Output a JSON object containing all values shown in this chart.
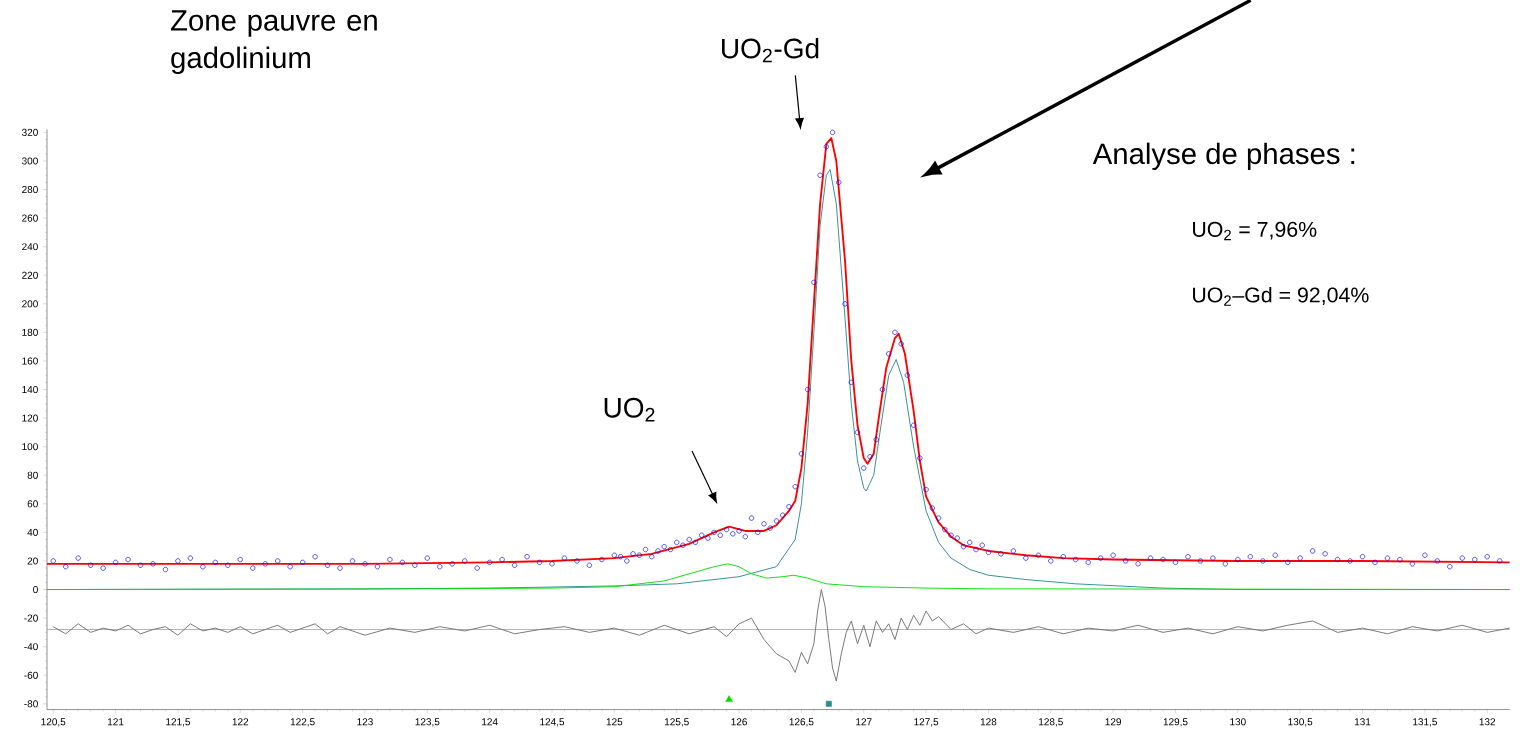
{
  "chart_data": {
    "type": "line",
    "xlim": [
      120.45,
      132.18
    ],
    "ylim": [
      -84,
      322
    ],
    "xticks": [
      {
        "value": 120.5,
        "label": "120,5"
      },
      121,
      {
        "value": 121.5,
        "label": "121,5"
      },
      122,
      {
        "value": 122.5,
        "label": "122,5"
      },
      123,
      {
        "value": 123.5,
        "label": "123,5"
      },
      124,
      {
        "value": 124.5,
        "label": "124,5"
      },
      125,
      {
        "value": 125.5,
        "label": "125,5"
      },
      126,
      {
        "value": 126.5,
        "label": "126,5"
      },
      127,
      {
        "value": 127.5,
        "label": "127,5"
      },
      128,
      {
        "value": 128.5,
        "label": "128,5"
      },
      129,
      {
        "value": 129.5,
        "label": "129,5"
      },
      130,
      {
        "value": 130.5,
        "label": "130,5"
      },
      131,
      {
        "value": 131.5,
        "label": "131,5"
      },
      132
    ],
    "yticks": [
      -80,
      -60,
      -40,
      -20,
      0,
      20,
      40,
      60,
      80,
      100,
      120,
      140,
      160,
      180,
      200,
      220,
      240,
      260,
      280,
      300,
      320
    ],
    "ref_lines": [
      {
        "axis": "y",
        "value": -28,
        "color": "#a0a0a0"
      }
    ],
    "annotations": [
      "Zone pauvre en gadolinium",
      {
        "text": "UO$_{2}$-Gd",
        "x": 126.74,
        "y": 316
      },
      "UO$_{2}$",
      "Analyse de phases :",
      "UO$_{2}$ = 7,96%",
      "UO$_{2}$–Gd = 92,04%"
    ],
    "series": [
      {
        "type": "scatter",
        "marker": "circle",
        "color": "#0000ff",
        "x": [
          120.5,
          120.6,
          120.7,
          120.8,
          120.9,
          121.0,
          121.1,
          121.2,
          121.3,
          121.4,
          121.5,
          121.6,
          121.7,
          121.8,
          121.9,
          122.0,
          122.1,
          122.2,
          122.3,
          122.4,
          122.5,
          122.6,
          122.7,
          122.8,
          122.9,
          123.0,
          123.1,
          123.2,
          123.3,
          123.4,
          123.5,
          123.6,
          123.7,
          123.8,
          123.9,
          124.0,
          124.1,
          124.2,
          124.3,
          124.4,
          124.5,
          124.6,
          124.7,
          124.8,
          124.9,
          125.0,
          125.05,
          125.1,
          125.15,
          125.2,
          125.25,
          125.3,
          125.35,
          125.4,
          125.45,
          125.5,
          125.55,
          125.6,
          125.65,
          125.7,
          125.75,
          125.8,
          125.85,
          125.9,
          125.95,
          126.0,
          126.05,
          126.1,
          126.15,
          126.2,
          126.25,
          126.3,
          126.35,
          126.4,
          126.45,
          126.5,
          126.55,
          126.6,
          126.65,
          126.7,
          126.75,
          126.8,
          126.85,
          126.9,
          126.95,
          127.0,
          127.05,
          127.1,
          127.15,
          127.2,
          127.25,
          127.3,
          127.35,
          127.4,
          127.45,
          127.5,
          127.55,
          127.6,
          127.65,
          127.7,
          127.75,
          127.8,
          127.85,
          127.9,
          127.95,
          128.0,
          128.1,
          128.2,
          128.3,
          128.4,
          128.5,
          128.6,
          128.7,
          128.8,
          128.9,
          129.0,
          129.1,
          129.2,
          129.3,
          129.4,
          129.5,
          129.6,
          129.7,
          129.8,
          129.9,
          130.0,
          130.1,
          130.2,
          130.3,
          130.4,
          130.5,
          130.6,
          130.7,
          130.8,
          130.9,
          131.0,
          131.1,
          131.2,
          131.3,
          131.4,
          131.5,
          131.6,
          131.7,
          131.8,
          131.9,
          132.0,
          132.1
        ],
        "values": [
          20,
          16,
          22,
          17,
          15,
          19,
          21,
          17,
          18,
          14,
          20,
          22,
          16,
          19,
          17,
          21,
          15,
          18,
          20,
          16,
          19,
          23,
          17,
          15,
          20,
          18,
          16,
          21,
          19,
          17,
          22,
          16,
          18,
          20,
          15,
          19,
          21,
          17,
          23,
          19,
          18,
          22,
          20,
          17,
          21,
          24,
          23,
          20,
          25,
          24,
          28,
          23,
          27,
          30,
          28,
          33,
          31,
          35,
          33,
          38,
          36,
          40,
          38,
          42,
          39,
          41,
          37,
          50,
          40,
          46,
          43,
          48,
          52,
          58,
          72,
          95,
          140,
          215,
          290,
          310,
          320,
          285,
          200,
          145,
          110,
          85,
          93,
          105,
          140,
          165,
          180,
          172,
          150,
          115,
          92,
          70,
          57,
          50,
          42,
          38,
          36,
          30,
          33,
          28,
          31,
          26,
          25,
          27,
          22,
          24,
          20,
          23,
          21,
          19,
          22,
          24,
          20,
          18,
          22,
          21,
          19,
          23,
          20,
          22,
          18,
          21,
          23,
          20,
          24,
          19,
          22,
          27,
          25,
          21,
          20,
          23,
          19,
          22,
          21,
          18,
          24,
          20,
          16,
          22,
          21,
          23,
          20
        ]
      },
      {
        "type": "line",
        "marker": "none",
        "color": "#ff0000",
        "x": [
          120.45,
          121,
          122,
          123,
          124,
          124.5,
          125,
          125.3,
          125.6,
          125.8,
          125.92,
          126.05,
          126.2,
          126.3,
          126.4,
          126.45,
          126.5,
          126.55,
          126.6,
          126.65,
          126.7,
          126.74,
          126.78,
          126.85,
          126.9,
          126.95,
          127.0,
          127.03,
          127.08,
          127.12,
          127.18,
          127.25,
          127.28,
          127.33,
          127.4,
          127.45,
          127.5,
          127.6,
          127.7,
          127.8,
          128,
          128.3,
          128.6,
          129,
          130,
          131,
          132.18
        ],
        "values": [
          18,
          18,
          18,
          18,
          19,
          20,
          22,
          25,
          32,
          40,
          44,
          41,
          41,
          45,
          55,
          62,
          85,
          130,
          200,
          270,
          312,
          316,
          300,
          230,
          160,
          115,
          92,
          88,
          95,
          120,
          155,
          176,
          179,
          165,
          125,
          90,
          65,
          47,
          37,
          31,
          27,
          24,
          22,
          21,
          20,
          20,
          19
        ]
      },
      {
        "type": "line",
        "marker": "none",
        "color": "#2a8c8c",
        "x": [
          120.45,
          123,
          124,
          125,
          125.5,
          126,
          126.3,
          126.45,
          126.5,
          126.55,
          126.6,
          126.65,
          126.7,
          126.73,
          126.78,
          126.85,
          126.9,
          126.95,
          127.0,
          127.02,
          127.08,
          127.13,
          127.2,
          127.26,
          127.32,
          127.4,
          127.5,
          127.6,
          127.7,
          127.85,
          128,
          128.3,
          128.7,
          129.4,
          130,
          132.18
        ],
        "values": [
          0,
          0.5,
          1,
          2.5,
          4,
          9,
          16,
          35,
          60,
          110,
          180,
          255,
          290,
          294,
          270,
          190,
          130,
          90,
          71,
          69,
          80,
          110,
          150,
          161,
          145,
          100,
          55,
          33,
          22,
          14,
          10,
          7,
          4,
          1,
          0,
          0
        ]
      },
      {
        "type": "line",
        "marker": "none",
        "color": "#00e000",
        "x": [
          120.45,
          123,
          124.5,
          125,
          125.4,
          125.6,
          125.8,
          125.91,
          126,
          126.1,
          126.22,
          126.35,
          126.44,
          126.55,
          126.7,
          127,
          127.5,
          128,
          132.18
        ],
        "values": [
          0,
          0.3,
          1,
          2,
          6,
          11,
          16,
          18,
          16,
          11,
          8,
          9,
          10,
          8,
          4,
          2,
          1,
          0.5,
          0
        ]
      },
      {
        "type": "line",
        "marker": "none",
        "color": "#707070",
        "x": [
          120.5,
          120.6,
          120.7,
          120.8,
          120.9,
          121.0,
          121.1,
          121.2,
          121.3,
          121.4,
          121.5,
          121.6,
          121.7,
          121.8,
          121.9,
          122.0,
          122.1,
          122.2,
          122.3,
          122.4,
          122.5,
          122.6,
          122.7,
          122.8,
          122.9,
          123.0,
          123.2,
          123.4,
          123.6,
          123.8,
          124.0,
          124.2,
          124.4,
          124.6,
          124.8,
          125.0,
          125.2,
          125.4,
          125.6,
          125.8,
          125.9,
          126.0,
          126.1,
          126.2,
          126.3,
          126.4,
          126.45,
          126.5,
          126.55,
          126.6,
          126.63,
          126.66,
          126.69,
          126.72,
          126.75,
          126.78,
          126.82,
          126.86,
          126.9,
          126.95,
          127.0,
          127.05,
          127.1,
          127.15,
          127.2,
          127.25,
          127.3,
          127.35,
          127.4,
          127.45,
          127.5,
          127.55,
          127.6,
          127.7,
          127.8,
          127.9,
          128.0,
          128.2,
          128.4,
          128.6,
          128.8,
          129.0,
          129.2,
          129.4,
          129.6,
          129.8,
          130.0,
          130.2,
          130.4,
          130.6,
          130.8,
          131.0,
          131.2,
          131.4,
          131.6,
          131.8,
          132.0,
          132.18
        ],
        "values": [
          -26,
          -31,
          -24,
          -30,
          -27,
          -29,
          -25,
          -31,
          -28,
          -26,
          -32,
          -24,
          -29,
          -27,
          -30,
          -26,
          -31,
          -28,
          -25,
          -30,
          -27,
          -24,
          -31,
          -26,
          -29,
          -32,
          -27,
          -30,
          -26,
          -29,
          -25,
          -31,
          -28,
          -26,
          -30,
          -27,
          -32,
          -25,
          -31,
          -26,
          -33,
          -24,
          -20,
          -35,
          -45,
          -50,
          -58,
          -44,
          -52,
          -38,
          -15,
          0,
          -12,
          -35,
          -55,
          -64,
          -45,
          -30,
          -22,
          -38,
          -25,
          -40,
          -22,
          -30,
          -24,
          -35,
          -20,
          -28,
          -18,
          -25,
          -15,
          -22,
          -19,
          -28,
          -24,
          -31,
          -27,
          -30,
          -26,
          -31,
          -27,
          -29,
          -25,
          -30,
          -27,
          -31,
          -26,
          -29,
          -25,
          -22,
          -30,
          -27,
          -31,
          -26,
          -29,
          -25,
          -30,
          -27
        ]
      },
      {
        "type": "scatter",
        "marker": "triangle",
        "color": "#00e000",
        "x": [
          125.92
        ],
        "values": [
          -77
        ]
      },
      {
        "type": "scatter",
        "marker": "square",
        "color": "#2a8c8c",
        "x": [
          126.72
        ],
        "values": [
          -80
        ]
      }
    ]
  }
}
